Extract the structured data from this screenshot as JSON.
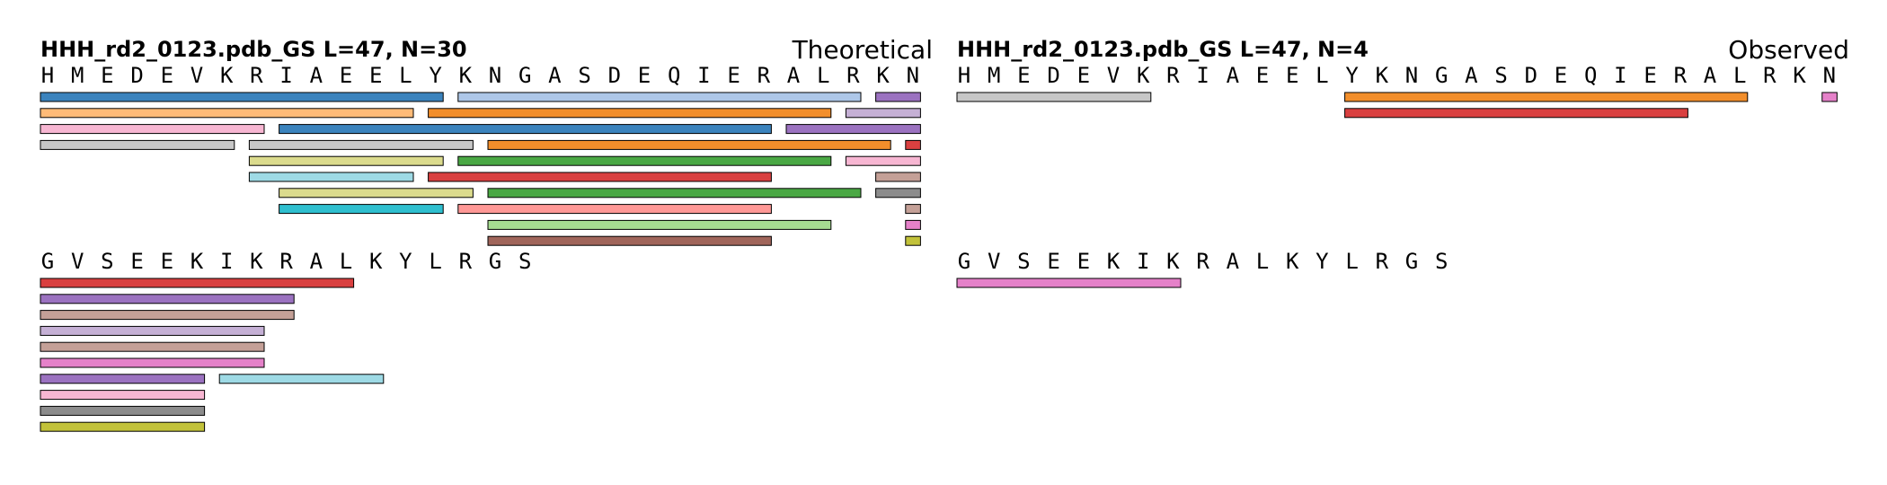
{
  "palette": {
    "blue": "#3b83bd",
    "lightblue": "#aec7e8",
    "orange": "#f28e2b",
    "peach": "#ffbb78",
    "green": "#4aa844",
    "lightgreen": "#a6dc91",
    "red": "#d94040",
    "salmon": "#ff9896",
    "purple": "#9b72c0",
    "lavender": "#c5b0d5",
    "brown": "#a0655a",
    "tan": "#c4a097",
    "pink": "#e581c9",
    "lightpink": "#f7b6d2",
    "gray": "#8c8c8c",
    "lightgray": "#c7c7c7",
    "olive": "#c2c23a",
    "khaki": "#dbdb8d",
    "cyan": "#2fbfcf",
    "paleblue": "#9edae5"
  },
  "panels": [
    {
      "title": "HHH_rd2_0123.pdb_GS  L=47, N=30",
      "label": "Theoretical",
      "blocks": [
        {
          "sequence": "HMEDEVKRIAEELYKNGASDEQIERALRKN",
          "fragments": [
            {
              "row": 0,
              "start": 1,
              "end": 14,
              "color": "blue"
            },
            {
              "row": 0,
              "start": 15,
              "end": 28,
              "color": "lightblue"
            },
            {
              "row": 0,
              "start": 29,
              "end": 30,
              "color": "purple"
            },
            {
              "row": 1,
              "start": 1,
              "end": 13,
              "color": "peach"
            },
            {
              "row": 1,
              "start": 14,
              "end": 27,
              "color": "orange"
            },
            {
              "row": 1,
              "start": 28,
              "end": 30,
              "color": "lavender"
            },
            {
              "row": 2,
              "start": 1,
              "end": 8,
              "color": "lightpink"
            },
            {
              "row": 2,
              "start": 9,
              "end": 25,
              "color": "blue"
            },
            {
              "row": 2,
              "start": 26,
              "end": 30,
              "color": "purple"
            },
            {
              "row": 3,
              "start": 1,
              "end": 7,
              "color": "lightgray"
            },
            {
              "row": 3,
              "start": 8,
              "end": 15,
              "color": "lightgray"
            },
            {
              "row": 3,
              "start": 16,
              "end": 29,
              "color": "orange"
            },
            {
              "row": 3,
              "start": 30,
              "end": 30,
              "color": "red"
            },
            {
              "row": 4,
              "start": 8,
              "end": 14,
              "color": "khaki"
            },
            {
              "row": 4,
              "start": 15,
              "end": 27,
              "color": "green"
            },
            {
              "row": 4,
              "start": 28,
              "end": 30,
              "color": "lightpink"
            },
            {
              "row": 5,
              "start": 8,
              "end": 13,
              "color": "paleblue"
            },
            {
              "row": 5,
              "start": 14,
              "end": 25,
              "color": "red"
            },
            {
              "row": 5,
              "start": 29,
              "end": 30,
              "color": "tan"
            },
            {
              "row": 6,
              "start": 9,
              "end": 15,
              "color": "khaki"
            },
            {
              "row": 6,
              "start": 16,
              "end": 28,
              "color": "green"
            },
            {
              "row": 6,
              "start": 29,
              "end": 30,
              "color": "gray"
            },
            {
              "row": 7,
              "start": 9,
              "end": 14,
              "color": "cyan"
            },
            {
              "row": 7,
              "start": 15,
              "end": 25,
              "color": "salmon"
            },
            {
              "row": 7,
              "start": 30,
              "end": 30,
              "color": "tan"
            },
            {
              "row": 8,
              "start": 16,
              "end": 27,
              "color": "lightgreen"
            },
            {
              "row": 8,
              "start": 30,
              "end": 30,
              "color": "pink"
            },
            {
              "row": 9,
              "start": 16,
              "end": 25,
              "color": "brown"
            },
            {
              "row": 9,
              "start": 30,
              "end": 30,
              "color": "olive"
            }
          ]
        },
        {
          "sequence": "GVSEEKIKRALKYLRGS",
          "fragments": [
            {
              "row": 0,
              "start": 1,
              "end": 11,
              "color": "red"
            },
            {
              "row": 1,
              "start": 1,
              "end": 9,
              "color": "purple"
            },
            {
              "row": 2,
              "start": 1,
              "end": 9,
              "color": "tan"
            },
            {
              "row": 3,
              "start": 1,
              "end": 8,
              "color": "lavender"
            },
            {
              "row": 4,
              "start": 1,
              "end": 8,
              "color": "tan"
            },
            {
              "row": 5,
              "start": 1,
              "end": 8,
              "color": "pink"
            },
            {
              "row": 6,
              "start": 1,
              "end": 6,
              "color": "purple"
            },
            {
              "row": 6,
              "start": 7,
              "end": 12,
              "color": "paleblue"
            },
            {
              "row": 7,
              "start": 1,
              "end": 6,
              "color": "lightpink"
            },
            {
              "row": 8,
              "start": 1,
              "end": 6,
              "color": "gray"
            },
            {
              "row": 9,
              "start": 1,
              "end": 6,
              "color": "olive"
            }
          ]
        }
      ]
    },
    {
      "title": "HHH_rd2_0123.pdb_GS  L=47, N=4",
      "label": "Observed",
      "blocks": [
        {
          "sequence": "HMEDEVKRIAEELYKNGASDEQIERALRKN",
          "fragments": [
            {
              "row": 0,
              "start": 1,
              "end": 7,
              "color": "lightgray"
            },
            {
              "row": 0,
              "start": 14,
              "end": 27,
              "color": "orange"
            },
            {
              "row": 0,
              "start": 30,
              "end": 30,
              "color": "pink"
            },
            {
              "row": 1,
              "start": 14,
              "end": 25,
              "color": "red"
            }
          ]
        },
        {
          "sequence": "GVSEEKIKRALKYLRGS",
          "fragments": [
            {
              "row": 0,
              "start": 1,
              "end": 8,
              "color": "pink"
            }
          ]
        }
      ]
    }
  ]
}
